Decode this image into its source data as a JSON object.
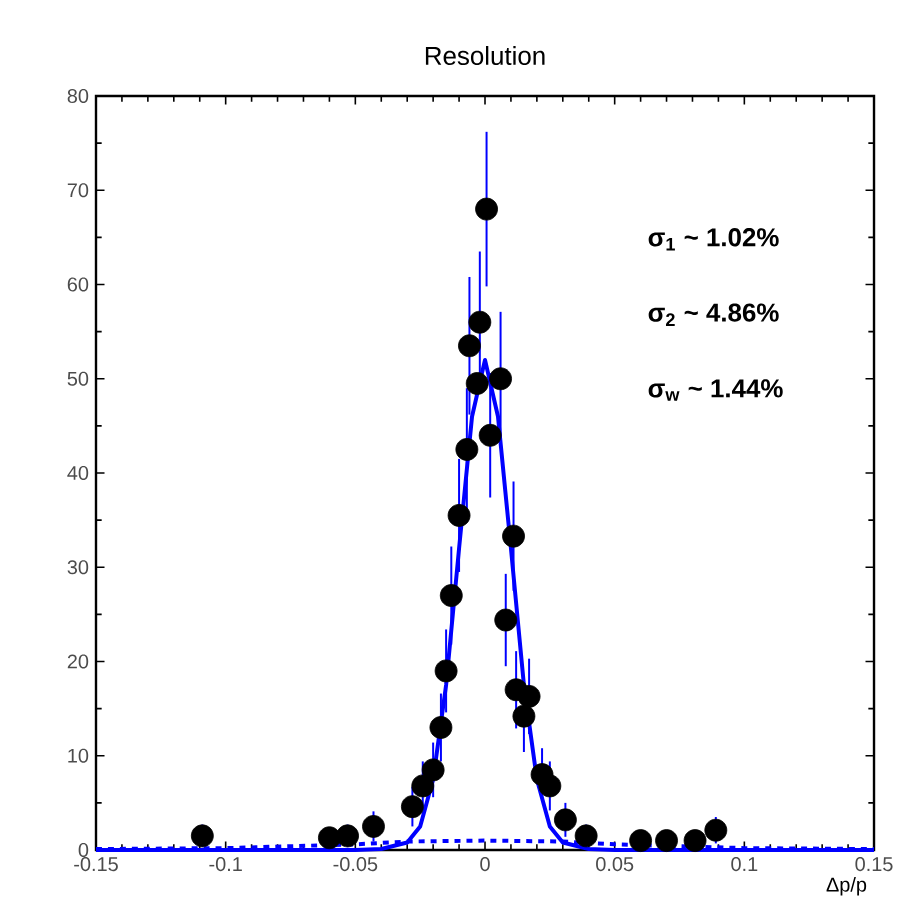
{
  "chart_data": {
    "type": "scatter",
    "title": "Resolution",
    "xlabel": "Δp/p",
    "xlim": [
      -0.15,
      0.15
    ],
    "xticks": [
      -0.15,
      -0.1,
      -0.05,
      0,
      0.05,
      0.1,
      0.15
    ],
    "ylim": [
      0,
      80
    ],
    "yticks": [
      0,
      10,
      20,
      30,
      40,
      50,
      60,
      70,
      80
    ],
    "grid": false,
    "annotations": [
      "**σ$_{1}$ ~ 1.02%**",
      "**σ$_{2}$ ~ 4.86%**",
      "**σ$_{w}$ ~ 1.44%**"
    ],
    "series": [
      {
        "marker": "circle",
        "color": "#000000",
        "x": [
          -0.109,
          -0.06,
          -0.053,
          -0.043,
          -0.028,
          -0.024,
          -0.02,
          -0.017,
          -0.015,
          -0.013,
          -0.01,
          -0.007,
          -0.006,
          -0.003,
          -0.002,
          0.0006,
          0.002,
          0.006,
          0.008,
          0.011,
          0.012,
          0.015,
          0.017,
          0.022,
          0.025,
          0.031,
          0.039,
          0.06,
          0.07,
          0.081,
          0.089
        ],
        "values": [
          1.5,
          1.3,
          1.5,
          2.5,
          4.6,
          6.8,
          8.5,
          13,
          19,
          27,
          35.5,
          42.5,
          53.5,
          49.5,
          56,
          68,
          44,
          50,
          24.4,
          33.3,
          17,
          14.2,
          16.3,
          8,
          6.8,
          3.2,
          1.5,
          1,
          1,
          1,
          2.1
        ],
        "errors": [
          1.2,
          1.1,
          1.2,
          1.6,
          2.1,
          2.6,
          2.9,
          3.6,
          4.4,
          5.2,
          6,
          6.5,
          7.3,
          null,
          7.5,
          8.2,
          6.6,
          7.1,
          4.9,
          5.8,
          4.1,
          3.8,
          4,
          2.8,
          2.6,
          1.8,
          1.2,
          null,
          null,
          1,
          1.4
        ]
      },
      {
        "type": "line",
        "marker": "none",
        "color": "#0000ff",
        "line_style": "solid",
        "x": [
          -0.15,
          -0.05,
          -0.04,
          -0.03,
          -0.025,
          -0.02,
          -0.015,
          -0.01,
          -0.005,
          0,
          0.005,
          0.01,
          0.015,
          0.02,
          0.025,
          0.03,
          0.04,
          0.05,
          0.15
        ],
        "values": [
          0,
          0,
          0.1,
          0.8,
          2.5,
          7.5,
          17.5,
          32,
          46,
          52,
          46,
          32,
          17.5,
          7.5,
          2.5,
          0.8,
          0.1,
          0,
          0
        ]
      },
      {
        "type": "line",
        "marker": "none",
        "color": "#0000ff",
        "line_style": "dashed",
        "x": [
          -0.15,
          -0.1,
          -0.05,
          -0.03,
          0,
          0.03,
          0.05,
          0.1,
          0.15
        ],
        "values": [
          0.1,
          0.2,
          0.6,
          0.9,
          1,
          0.9,
          0.6,
          0.2,
          0.1
        ]
      }
    ]
  }
}
